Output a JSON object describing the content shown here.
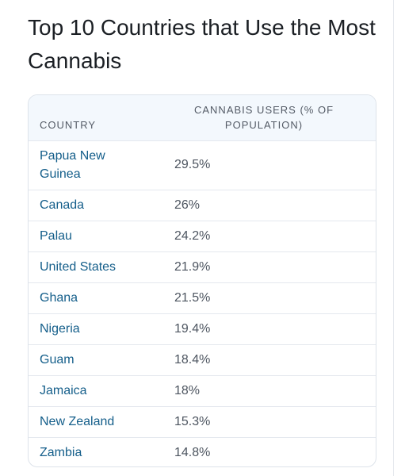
{
  "title": "Top 10 Countries that Use the Most Cannabis",
  "table": {
    "headers": {
      "country": "COUNTRY",
      "users": "CANNABIS USERS (% OF POPULATION)"
    },
    "rows": [
      {
        "country": "Papua New Guinea",
        "users": "29.5%"
      },
      {
        "country": "Canada",
        "users": "26%"
      },
      {
        "country": "Palau",
        "users": "24.2%"
      },
      {
        "country": "United States",
        "users": "21.9%"
      },
      {
        "country": "Ghana",
        "users": "21.5%"
      },
      {
        "country": "Nigeria",
        "users": "19.4%"
      },
      {
        "country": "Guam",
        "users": "18.4%"
      },
      {
        "country": "Jamaica",
        "users": "18%"
      },
      {
        "country": "New Zealand",
        "users": "15.3%"
      },
      {
        "country": "Zambia",
        "users": "14.8%"
      }
    ]
  }
}
